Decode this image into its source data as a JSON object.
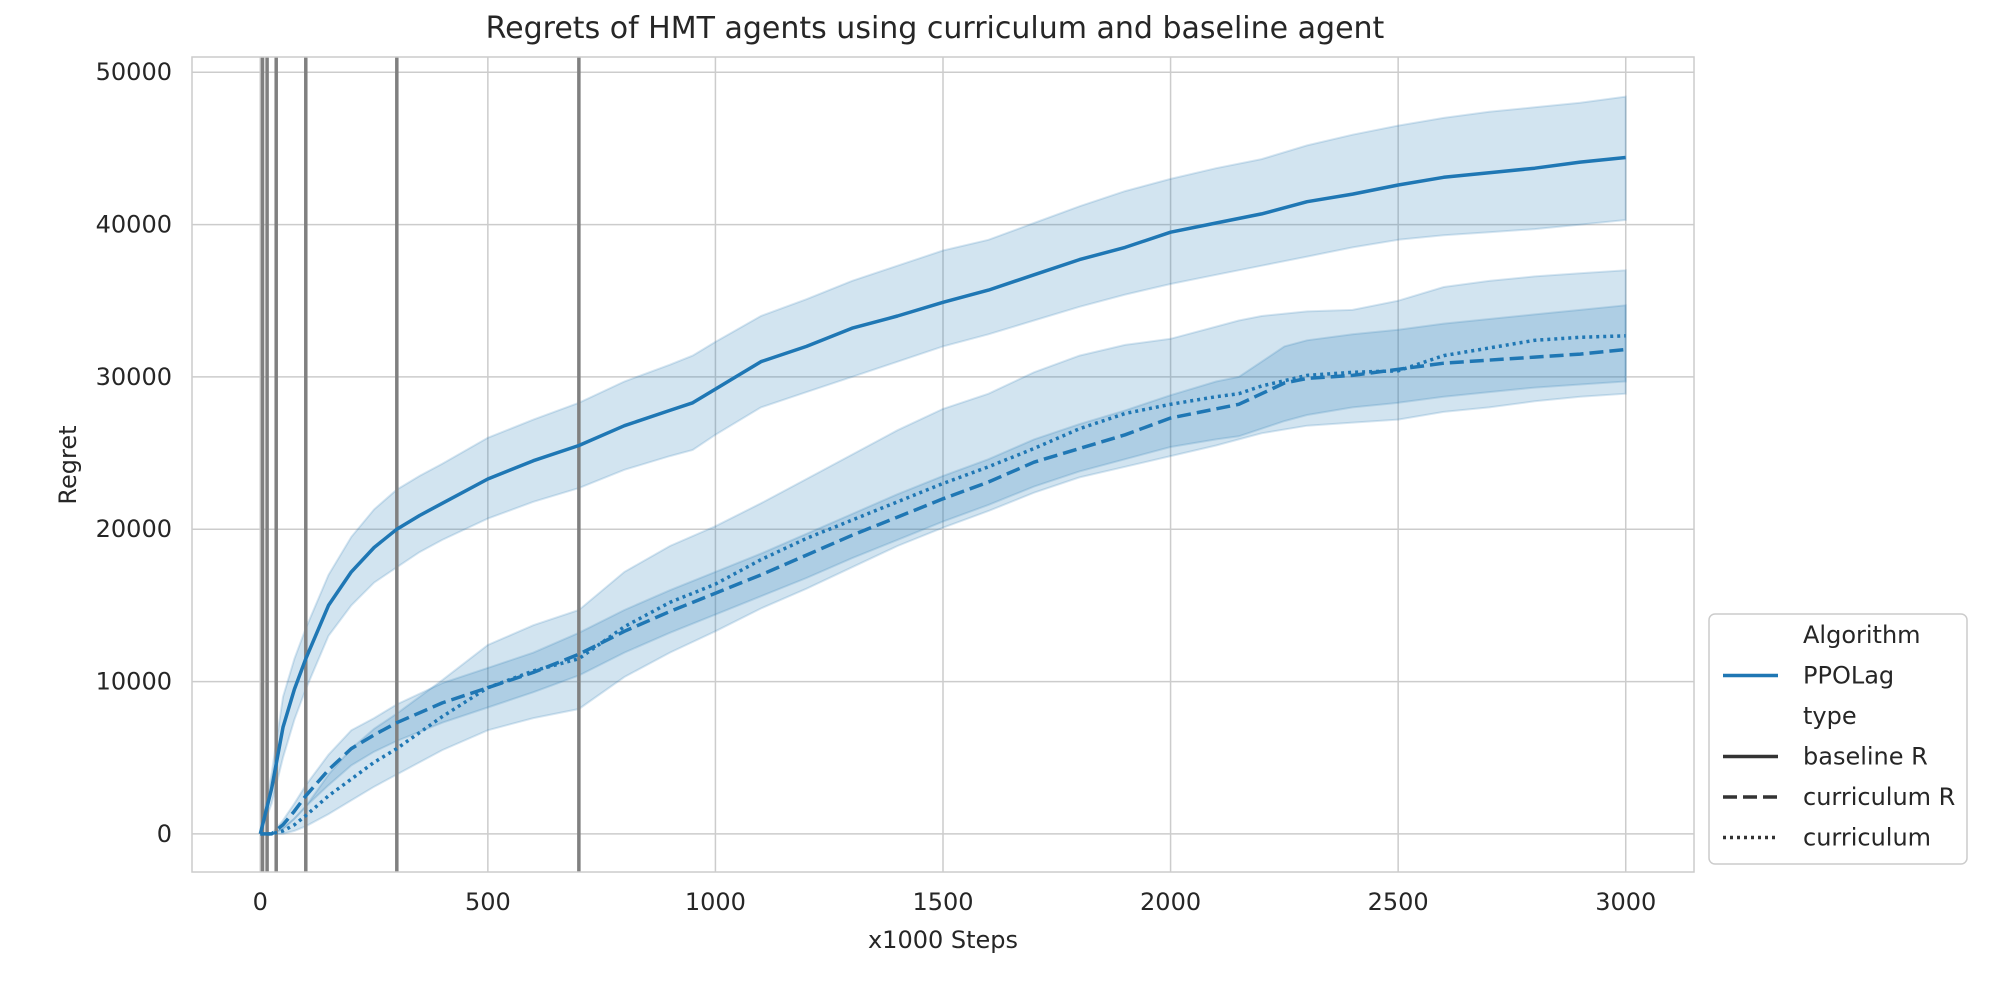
{
  "chart_data": {
    "type": "line",
    "title": "Regrets of HMT agents using curriculum and baseline agent",
    "xlabel": "x1000 Steps",
    "ylabel": "Regret",
    "xlim": [
      -150,
      3150
    ],
    "ylim": [
      -2500,
      51000
    ],
    "xticks": [
      0,
      500,
      1000,
      1500,
      2000,
      2500,
      3000
    ],
    "xtick_labels": [
      "0",
      "500",
      "1000",
      "1500",
      "2000",
      "2500",
      "3000"
    ],
    "yticks": [
      0,
      10000,
      20000,
      30000,
      40000,
      50000
    ],
    "ytick_labels": [
      "0",
      "10000",
      "20000",
      "30000",
      "40000",
      "50000"
    ],
    "grid": true,
    "legend_position": "lower-right-outside",
    "vertical_lines": [
      5,
      15,
      35,
      100,
      300,
      700
    ],
    "legend": [
      {
        "label": "Algorithm",
        "style": "header"
      },
      {
        "label": "PPOLag",
        "style": "blue-solid"
      },
      {
        "label": "type",
        "style": "header"
      },
      {
        "label": "baseline R",
        "style": "dark-solid"
      },
      {
        "label": "curriculum R",
        "style": "dark-dashed"
      },
      {
        "label": "curriculum",
        "style": "dark-dotted"
      }
    ],
    "colors": {
      "series": "#1f77b4",
      "band": "#1f77b4",
      "vline": "#808080",
      "grid": "#cccccc",
      "legend_dark": "#333333"
    },
    "series": [
      {
        "algorithm": "PPOLag",
        "type": "baseline R",
        "linestyle": "solid",
        "x": [
          0,
          25,
          50,
          75,
          100,
          150,
          200,
          250,
          300,
          350,
          400,
          500,
          600,
          700,
          800,
          900,
          950,
          1000,
          1100,
          1200,
          1300,
          1400,
          1500,
          1600,
          1700,
          1800,
          1900,
          2000,
          2100,
          2200,
          2300,
          2400,
          2500,
          2600,
          2700,
          2800,
          2900,
          3000
        ],
        "y": [
          0,
          3000,
          7000,
          9500,
          11500,
          15000,
          17200,
          18800,
          20000,
          20900,
          21700,
          23300,
          24500,
          25500,
          26800,
          27800,
          28300,
          29200,
          31000,
          32000,
          33200,
          34000,
          34900,
          35700,
          36700,
          37700,
          38500,
          39500,
          40100,
          40700,
          41500,
          42000,
          42600,
          43100,
          43400,
          43700,
          44100,
          44400
        ],
        "lower": [
          0,
          2000,
          5000,
          7500,
          9500,
          13000,
          15000,
          16500,
          17500,
          18500,
          19300,
          20700,
          21800,
          22700,
          23900,
          24800,
          25200,
          26200,
          28000,
          29000,
          30000,
          31000,
          32000,
          32800,
          33700,
          34600,
          35400,
          36100,
          36700,
          37300,
          37900,
          38500,
          39000,
          39300,
          39500,
          39700,
          40000,
          40300
        ],
        "upper": [
          0,
          4000,
          9000,
          11500,
          13500,
          17000,
          19500,
          21300,
          22600,
          23500,
          24300,
          26000,
          27200,
          28300,
          29700,
          30800,
          31400,
          32300,
          34000,
          35100,
          36300,
          37300,
          38300,
          39000,
          40100,
          41200,
          42200,
          43000,
          43700,
          44300,
          45200,
          45900,
          46500,
          47000,
          47400,
          47700,
          48000,
          48400
        ]
      },
      {
        "algorithm": "PPOLag",
        "type": "curriculum R",
        "linestyle": "dashed",
        "x": [
          0,
          25,
          50,
          75,
          100,
          150,
          200,
          250,
          300,
          400,
          500,
          600,
          700,
          800,
          900,
          1000,
          1100,
          1200,
          1300,
          1400,
          1500,
          1600,
          1700,
          1800,
          1900,
          2000,
          2100,
          2150,
          2200,
          2250,
          2300,
          2400,
          2500,
          2600,
          2700,
          2800,
          2900,
          3000
        ],
        "y": [
          0,
          0,
          600,
          1500,
          2500,
          4200,
          5600,
          6500,
          7300,
          8600,
          9600,
          10600,
          11800,
          13300,
          14600,
          15800,
          17000,
          18300,
          19600,
          20800,
          22000,
          23100,
          24400,
          25300,
          26200,
          27300,
          27900,
          28200,
          28900,
          29600,
          29900,
          30100,
          30500,
          30900,
          31100,
          31300,
          31500,
          31800
        ],
        "lower": [
          0,
          0,
          300,
          1000,
          1800,
          3200,
          4500,
          5400,
          6100,
          7300,
          8300,
          9300,
          10400,
          11900,
          13200,
          14400,
          15600,
          16800,
          18100,
          19300,
          20500,
          21600,
          22800,
          23800,
          24600,
          25400,
          25900,
          26100,
          26600,
          27100,
          27500,
          28000,
          28300,
          28700,
          29000,
          29300,
          29500,
          29700
        ],
        "upper": [
          0,
          0,
          900,
          2000,
          3200,
          5200,
          6800,
          7600,
          8500,
          9900,
          10900,
          11900,
          13200,
          14700,
          16000,
          17200,
          18400,
          19700,
          21000,
          22300,
          23500,
          24600,
          25900,
          26900,
          27800,
          28800,
          29700,
          30000,
          31000,
          32000,
          32400,
          32800,
          33100,
          33500,
          33800,
          34100,
          34400,
          34700
        ]
      },
      {
        "algorithm": "PPOLag",
        "type": "curriculum",
        "linestyle": "dotted",
        "x": [
          0,
          25,
          50,
          75,
          100,
          150,
          200,
          250,
          300,
          400,
          500,
          600,
          700,
          800,
          900,
          1000,
          1100,
          1200,
          1300,
          1400,
          1500,
          1600,
          1700,
          1800,
          1900,
          2000,
          2100,
          2150,
          2200,
          2300,
          2400,
          2500,
          2600,
          2700,
          2800,
          2900,
          3000
        ],
        "y": [
          0,
          0,
          200,
          600,
          1200,
          2500,
          3600,
          4700,
          5600,
          7700,
          9600,
          10700,
          11500,
          13600,
          15200,
          16400,
          18000,
          19400,
          20600,
          21800,
          23000,
          24100,
          25300,
          26600,
          27600,
          28200,
          28700,
          28900,
          29400,
          30100,
          30300,
          30400,
          31400,
          31900,
          32400,
          32600,
          32700
        ],
        "lower": [
          0,
          0,
          0,
          200,
          500,
          1300,
          2200,
          3100,
          3900,
          5500,
          6800,
          7600,
          8200,
          10300,
          11900,
          13300,
          14800,
          16100,
          17500,
          18900,
          20100,
          21200,
          22400,
          23400,
          24100,
          24800,
          25500,
          25900,
          26300,
          26800,
          27000,
          27200,
          27700,
          28000,
          28400,
          28700,
          28900
        ],
        "upper": [
          0,
          0,
          400,
          1000,
          1800,
          3900,
          5600,
          6900,
          7900,
          10100,
          12400,
          13700,
          14700,
          17200,
          18900,
          20200,
          21700,
          23300,
          24900,
          26500,
          27900,
          28900,
          30300,
          31400,
          32100,
          32500,
          33300,
          33700,
          34000,
          34300,
          34400,
          35000,
          35900,
          36300,
          36600,
          36800,
          37000
        ]
      }
    ]
  }
}
